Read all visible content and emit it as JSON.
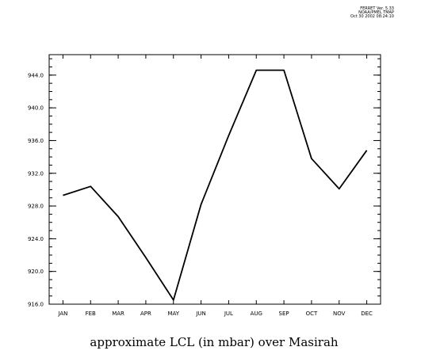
{
  "header": {
    "lines": [
      "FERRET Ver. 5.33",
      "NOAA/PMEL TMAP",
      "Oct 30 2002 08:24:10"
    ]
  },
  "chart_data": {
    "type": "line",
    "title": "approximate LCL (in mbar) over Masirah",
    "xlabel": "",
    "ylabel": "",
    "categories": [
      "JAN",
      "FEB",
      "MAR",
      "APR",
      "MAY",
      "JUN",
      "JUL",
      "AUG",
      "SEP",
      "OCT",
      "NOV",
      "DEC"
    ],
    "values": [
      929.3,
      930.4,
      926.7,
      921.7,
      916.5,
      928.2,
      936.6,
      944.6,
      944.6,
      933.8,
      930.1,
      934.8
    ],
    "ylim": [
      916.0,
      946.5
    ],
    "yticks": [
      916.0,
      920.0,
      924.0,
      928.0,
      932.0,
      936.0,
      940.0,
      944.0
    ],
    "ytick_labels": [
      "916.0",
      "920.0",
      "924.0",
      "928.0",
      "932.0",
      "936.0",
      "940.0",
      "944.0"
    ],
    "ytick_minor_step": 1.0,
    "grid": false,
    "legend": "none",
    "line_color": "#000000"
  }
}
